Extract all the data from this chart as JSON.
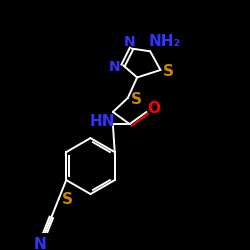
{
  "bg_color": "#000000",
  "bond_color": "#ffffff",
  "N_color": "#3333ff",
  "O_color": "#ff0000",
  "S_color": "#cc8800",
  "label_NH2": "NH₂",
  "label_N1": "N",
  "label_N2": "N",
  "label_S_ring": "S",
  "label_S_link": "S",
  "label_NH": "HN",
  "label_O": "O",
  "label_S_thi": "S",
  "label_N_thi": "N",
  "font_size": 11,
  "figsize": [
    2.5,
    2.5
  ],
  "dpi": 100,
  "lw": 1.4
}
